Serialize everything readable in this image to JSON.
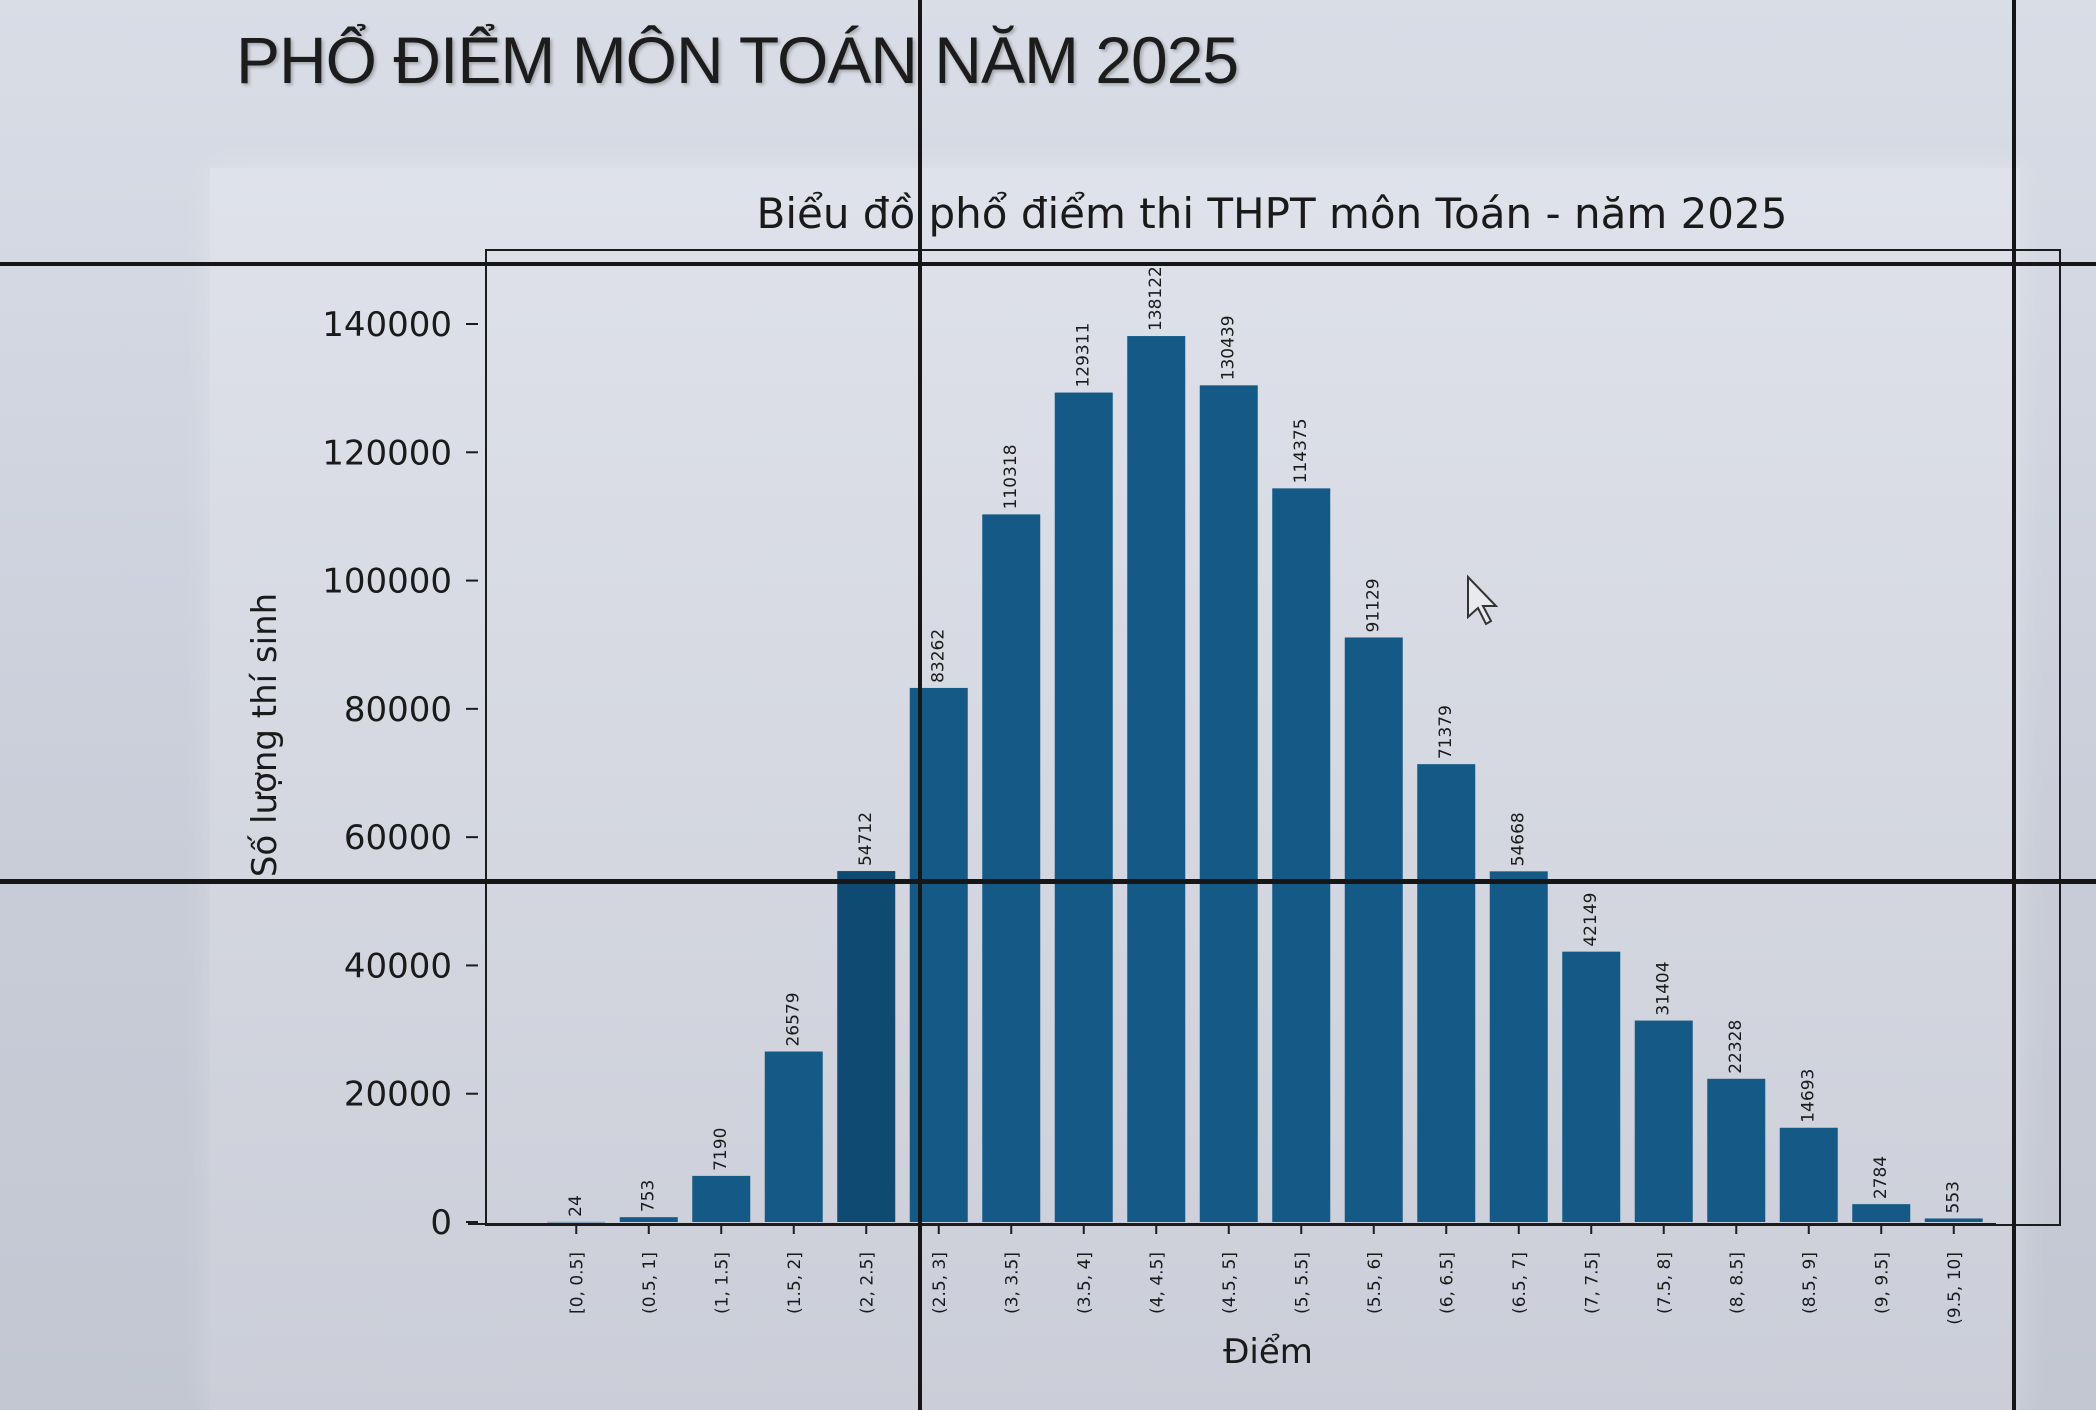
{
  "page": {
    "title": "PHỔ ĐIỂM MÔN TOÁN NĂM 2025"
  },
  "colors": {
    "bar": "#155a86",
    "bar_dark": "#0e4a72",
    "axis": "#222222"
  },
  "chart_data": {
    "type": "bar",
    "title": "Biểu đồ phổ điểm thi THPT môn Toán - năm 2025",
    "xlabel": "Điểm",
    "ylabel": "Số lượng thí sinh",
    "categories": [
      "[0, 0.5]",
      "(0.5, 1]",
      "(1, 1.5]",
      "(1.5, 2]",
      "(2, 2.5]",
      "(2.5, 3]",
      "(3, 3.5]",
      "(3.5, 4]",
      "(4, 4.5]",
      "(4.5, 5]",
      "(5, 5.5]",
      "(5.5, 6]",
      "(6, 6.5]",
      "(6.5, 7]",
      "(7, 7.5]",
      "(7.5, 8]",
      "(8, 8.5]",
      "(8.5, 9]",
      "(9, 9.5]",
      "(9.5, 10]"
    ],
    "values": [
      24,
      753,
      7190,
      26579,
      54712,
      83262,
      110318,
      129311,
      138122,
      130439,
      114375,
      91129,
      71379,
      54668,
      42149,
      31404,
      22328,
      14693,
      2784,
      553
    ],
    "y_ticks": [
      "0",
      "20000",
      "40000",
      "60000",
      "80000",
      "100000",
      "120000",
      "140000"
    ],
    "ylim": [
      0,
      150000
    ],
    "grid": false,
    "legend": "none"
  }
}
